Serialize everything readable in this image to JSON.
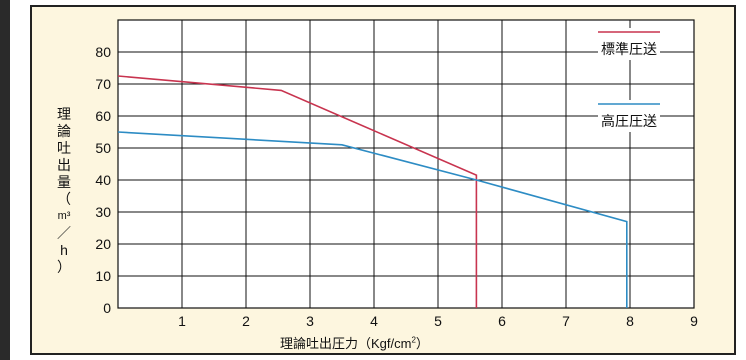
{
  "chart_data": {
    "type": "line",
    "xlabel_main": "理論吐出圧力（Kgf/cm",
    "xlabel_sup": "2",
    "xlabel_end": "）",
    "ylabel_chars": [
      "理",
      "論",
      "吐",
      "出",
      "量",
      "（",
      "m³",
      "／",
      "h",
      "）"
    ],
    "xlim": [
      0,
      9
    ],
    "ylim": [
      0,
      90
    ],
    "x_ticks": [
      1,
      2,
      3,
      4,
      5,
      6,
      7,
      8,
      9
    ],
    "y_ticks": [
      0,
      10,
      20,
      30,
      40,
      50,
      60,
      70,
      80
    ],
    "grid": true,
    "legend_position": "top-right",
    "series": [
      {
        "name": "標準圧送",
        "color": "#c8344f",
        "points": [
          [
            0,
            72.5
          ],
          [
            2.55,
            68
          ],
          [
            5.6,
            41.5
          ],
          [
            5.6,
            0
          ]
        ]
      },
      {
        "name": "高圧圧送",
        "color": "#2d8cc4",
        "points": [
          [
            0,
            55
          ],
          [
            3.5,
            51
          ],
          [
            5.6,
            40
          ],
          [
            7.95,
            27
          ],
          [
            7.95,
            0
          ]
        ]
      }
    ]
  },
  "colors": {
    "background": "#fdf6df",
    "grid": "#111111"
  }
}
